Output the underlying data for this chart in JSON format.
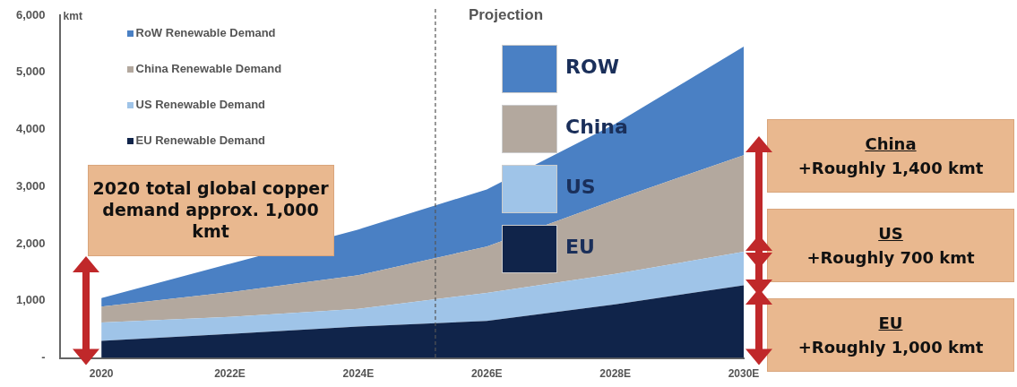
{
  "chart_data": {
    "type": "area",
    "stacked": true,
    "ylabel": "kmt",
    "legend": "top left",
    "marker": "none",
    "x": [
      2020,
      2022,
      2024,
      2026,
      2028,
      2030
    ],
    "xlim": [
      2019.35,
      2030
    ],
    "xticks": [
      2020,
      {
        "value": 2022,
        "label": "2022E"
      },
      {
        "value": 2024,
        "label": "2024E"
      },
      {
        "value": 2026,
        "label": "2026E"
      },
      {
        "value": 2028,
        "label": "2028E"
      },
      {
        "value": 2030,
        "label": "2030E"
      }
    ],
    "ylim": [
      0,
      6000
    ],
    "yticks": [
      {
        "value": 0,
        "label": "-"
      },
      {
        "value": 1000,
        "label": "1,000"
      },
      {
        "value": 2000,
        "label": "2,000"
      },
      {
        "value": 3000,
        "label": "3,000"
      },
      {
        "value": 4000,
        "label": "4,000"
      },
      {
        "value": 5000,
        "label": "5,000"
      },
      {
        "value": 6000,
        "label": "6,000"
      }
    ],
    "series": [
      {
        "name": "EU Renewable Demand",
        "color": "#10244a",
        "values": [
          300,
          420,
          550,
          650,
          940,
          1270
        ]
      },
      {
        "name": "US Renewable Demand",
        "color": "#9fc4e8",
        "values": [
          320,
          300,
          310,
          490,
          530,
          590
        ]
      },
      {
        "name": "China Renewable Demand",
        "color": "#b3a89e",
        "values": [
          280,
          430,
          590,
          810,
          1300,
          1690
        ]
      },
      {
        "name": "RoW Renewable Demand",
        "color": "#4a80c4",
        "values": [
          150,
          500,
          800,
          1000,
          1330,
          1900
        ]
      }
    ],
    "ref_lines": [
      {
        "axis": "x",
        "value": 2025.2,
        "label": "Projection",
        "line_style": "dashed",
        "color": "#555555"
      }
    ],
    "annotations": [
      "2020 total global copper demand approx. 1,000 kmt",
      "ROW",
      "China",
      "US",
      "EU",
      "China\n+Roughly 1,400 kmt",
      "US\n+Roughly 700 kmt",
      "EU\n+Roughly 1,000 kmt"
    ]
  }
}
